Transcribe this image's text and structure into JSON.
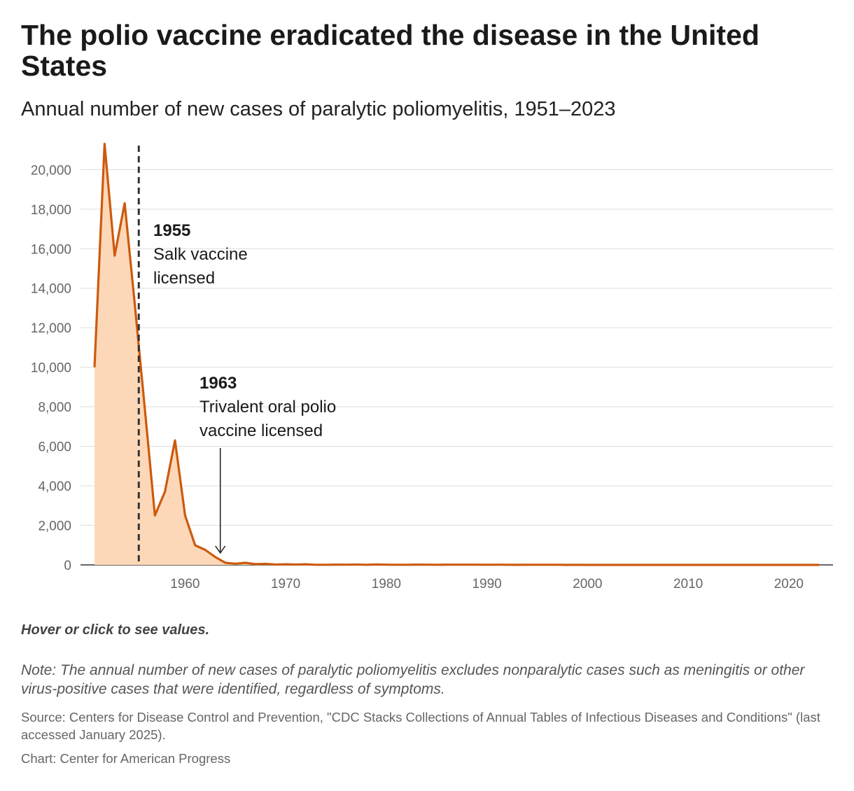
{
  "header": {
    "title": "The polio vaccine eradicated the disease in the United States",
    "subtitle": "Annual number of new cases of paralytic poliomyelitis, 1951–2023"
  },
  "footer": {
    "hover_note": "Hover or click to see values.",
    "note": "Note: The annual number of new cases of paralytic poliomyelitis excludes nonparalytic cases such as meningitis or other virus-positive cases that were identified, regardless of symptoms.",
    "source": "Source: Centers for Disease Control and Prevention, \"CDC Stacks Collections of Annual Tables of Infectious Diseases and Conditions\" (last accessed January 2025).",
    "credit": "Chart: Center for American Progress"
  },
  "colors": {
    "line": "#cc5a0e",
    "area": "#fdd8b8",
    "grid": "#e2e2e2",
    "axis": "#333333",
    "annotation_line": "#333333"
  },
  "chart_data": {
    "type": "area",
    "xlim": [
      1951,
      2023
    ],
    "ylim": [
      0,
      21500
    ],
    "grid": true,
    "y_ticks": [
      0,
      2000,
      4000,
      6000,
      8000,
      10000,
      12000,
      14000,
      16000,
      18000,
      20000
    ],
    "y_tick_labels": [
      "0",
      "2,000",
      "4,000",
      "6,000",
      "8,000",
      "10,000",
      "12,000",
      "14,000",
      "16,000",
      "18,000",
      "20,000"
    ],
    "x_ticks": [
      1960,
      1970,
      1980,
      1990,
      2000,
      2010,
      2020
    ],
    "x_tick_labels": [
      "1960",
      "1970",
      "1980",
      "1990",
      "2000",
      "2010",
      "2020"
    ],
    "series": [
      {
        "x": [
          1951,
          1952,
          1953,
          1954,
          1955,
          1956,
          1957,
          1958,
          1959,
          1960,
          1961,
          1962,
          1963,
          1964,
          1965,
          1966,
          1967,
          1968,
          1969,
          1970,
          1971,
          1972,
          1973,
          1974,
          1975,
          1976,
          1977,
          1978,
          1979,
          1980,
          1981,
          1982,
          1983,
          1984,
          1985,
          1986,
          1987,
          1988,
          1989,
          1990,
          1991,
          1992,
          1993,
          1994,
          1995,
          1996,
          1997,
          1998,
          1999,
          2000,
          2001,
          2002,
          2003,
          2004,
          2005,
          2006,
          2007,
          2008,
          2009,
          2010,
          2011,
          2012,
          2013,
          2014,
          2015,
          2016,
          2017,
          2018,
          2019,
          2020,
          2021,
          2022,
          2023
        ],
        "values": [
          10000,
          21300,
          15650,
          18300,
          13200,
          7900,
          2500,
          3700,
          6300,
          2500,
          990,
          760,
          400,
          106,
          61,
          106,
          40,
          53,
          18,
          31,
          18,
          31,
          7,
          7,
          13,
          10,
          18,
          8,
          22,
          9,
          6,
          8,
          13,
          9,
          7,
          10,
          9,
          9,
          11,
          6,
          10,
          6,
          3,
          8,
          7,
          7,
          6,
          1,
          2,
          0,
          0,
          0,
          0,
          0,
          1,
          0,
          0,
          0,
          0,
          0,
          0,
          0,
          0,
          0,
          0,
          0,
          0,
          0,
          0,
          0,
          0,
          1,
          0
        ]
      }
    ],
    "annotations": [
      {
        "year": 1955.4,
        "bold": "1955",
        "lines": [
          "Salk vaccine",
          "licensed"
        ]
      },
      {
        "year": 1963.5,
        "bold": "1963",
        "lines": [
          "Trivalent oral polio",
          "vaccine licensed"
        ]
      }
    ]
  }
}
